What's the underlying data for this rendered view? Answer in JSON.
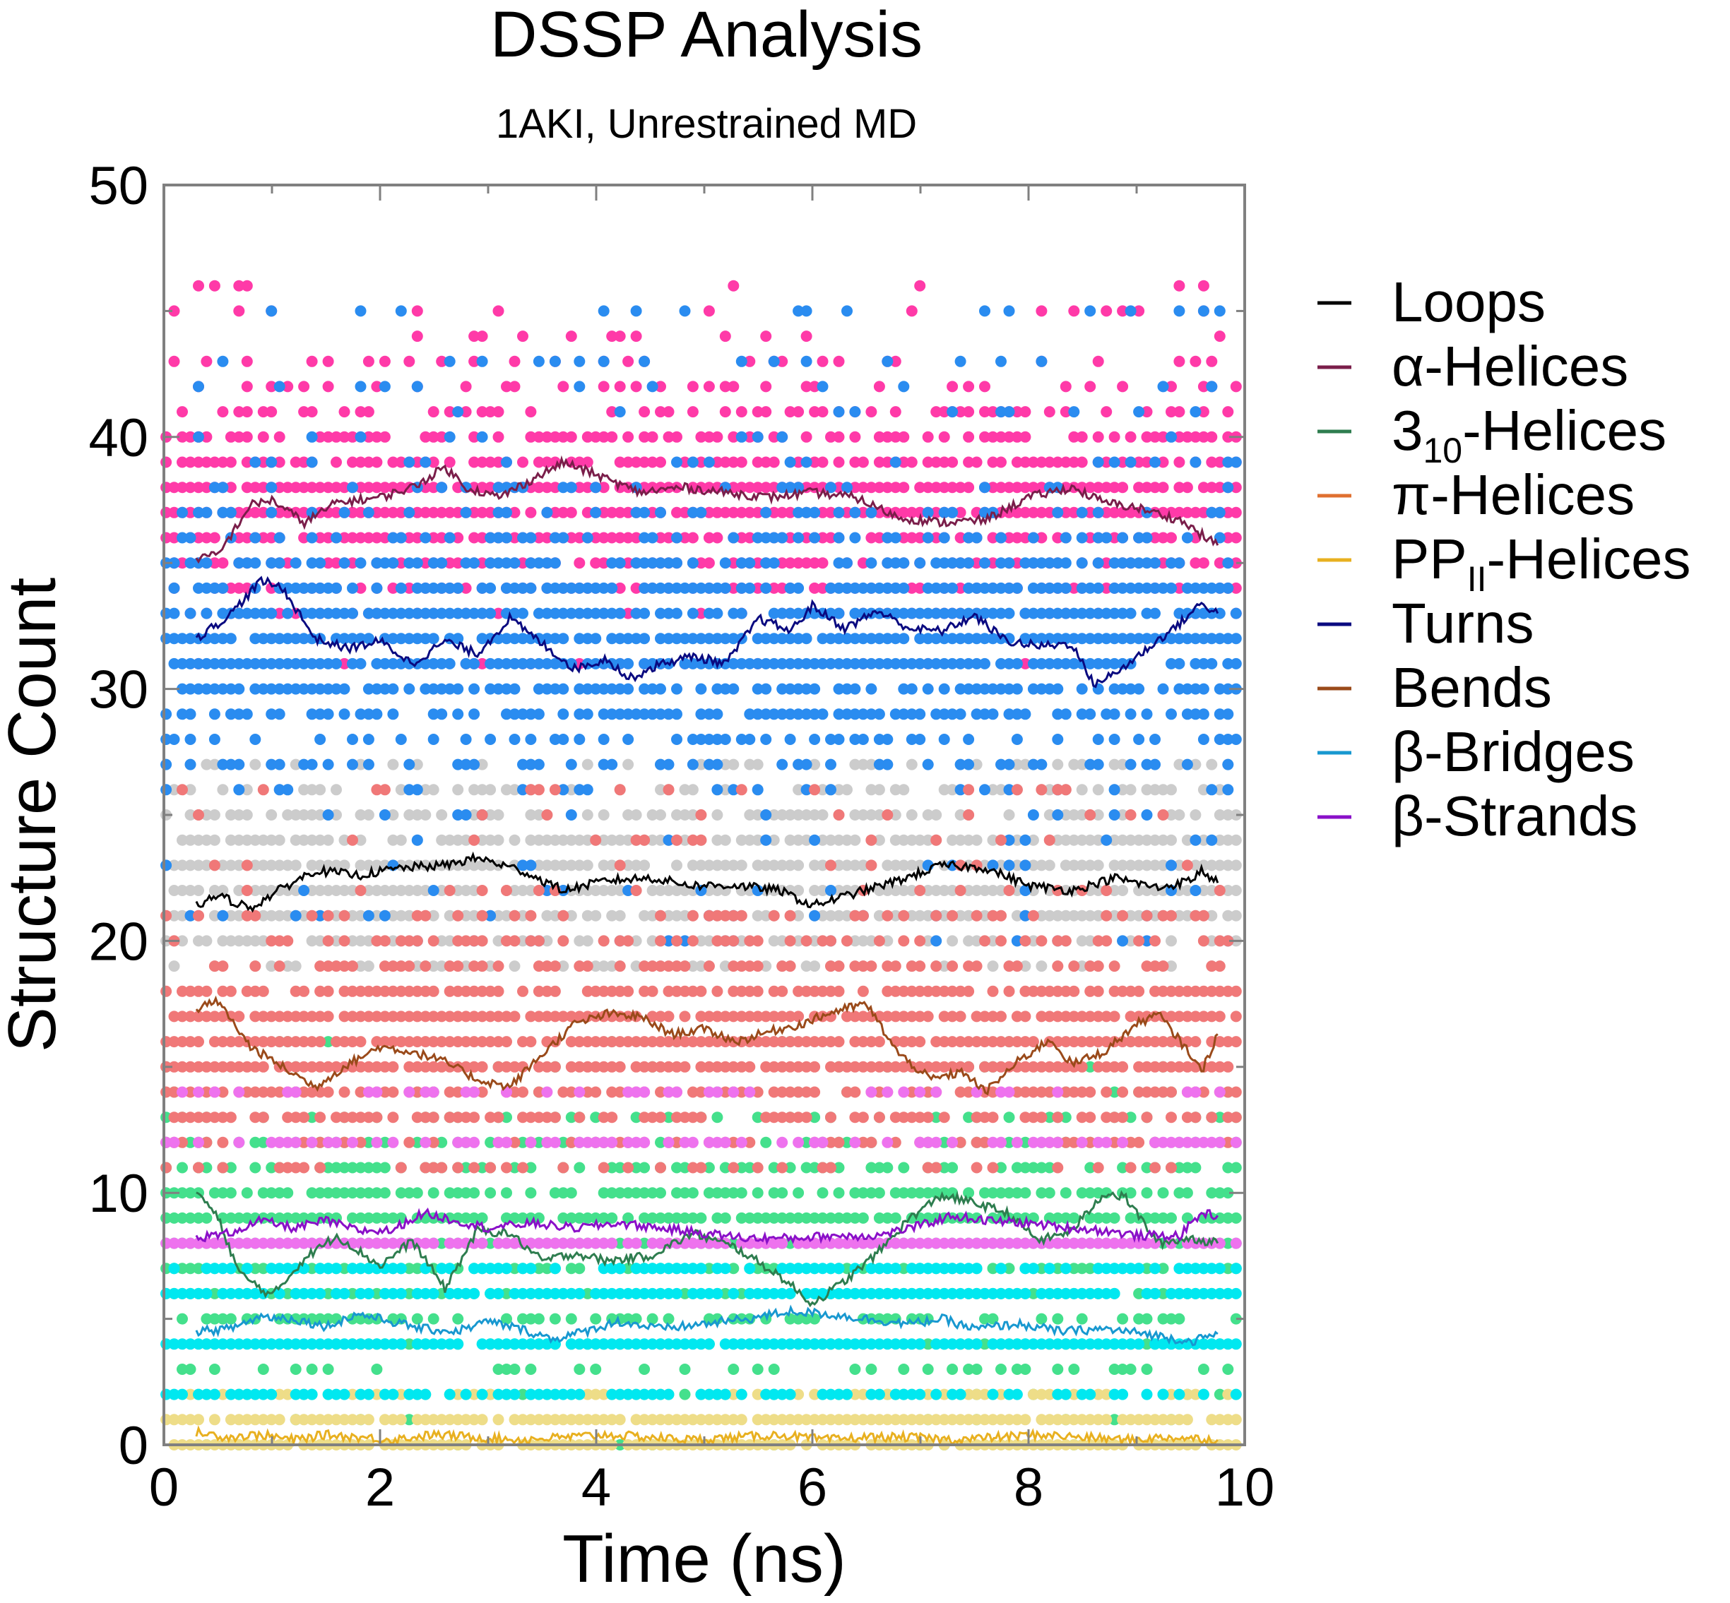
{
  "chart_data": {
    "type": "scatter",
    "title": "DSSP Analysis",
    "subtitle": "1AKI, Unrestrained MD",
    "xlabel": "Time (ns)",
    "ylabel": "Structure Count",
    "xlim": [
      0,
      10
    ],
    "ylim": [
      0,
      50
    ],
    "x_ticks": [
      0,
      2,
      4,
      6,
      8,
      10
    ],
    "y_ticks": [
      0,
      10,
      20,
      30,
      40,
      50
    ],
    "x_tick_labels": [
      "0",
      "2",
      "4",
      "6",
      "8",
      "10"
    ],
    "y_tick_labels": [
      "0",
      "10",
      "20",
      "30",
      "40",
      "50"
    ],
    "grid": false,
    "legend_position": "right",
    "series": [
      {
        "name": "Loops",
        "legend_main": "Loops",
        "legend_sub": "",
        "legend_tail": "",
        "line_color": "#000000",
        "dot_color": "#cccccc",
        "smoothed": [
          [
            0.3,
            21.4
          ],
          [
            0.5,
            21.8
          ],
          [
            0.8,
            21.3
          ],
          [
            1.1,
            22.1
          ],
          [
            1.4,
            22.8
          ],
          [
            1.8,
            22.6
          ],
          [
            2.2,
            22.9
          ],
          [
            2.6,
            23.0
          ],
          [
            2.9,
            23.3
          ],
          [
            3.3,
            22.8
          ],
          [
            3.7,
            22.0
          ],
          [
            4.1,
            22.4
          ],
          [
            4.5,
            22.5
          ],
          [
            4.9,
            22.2
          ],
          [
            5.3,
            22.2
          ],
          [
            5.7,
            22.0
          ],
          [
            6.0,
            21.4
          ],
          [
            6.4,
            21.9
          ],
          [
            6.8,
            22.4
          ],
          [
            7.2,
            23.0
          ],
          [
            7.6,
            22.9
          ],
          [
            8.0,
            22.2
          ],
          [
            8.4,
            22.0
          ],
          [
            8.8,
            22.5
          ],
          [
            9.2,
            22.1
          ],
          [
            9.5,
            22.4
          ],
          [
            9.6,
            22.8
          ],
          [
            9.75,
            22.3
          ]
        ],
        "dot_levels": [
          19,
          20,
          21,
          22,
          23,
          24,
          25,
          26,
          27
        ]
      },
      {
        "name": "α-Helices",
        "legend_main": "α-Helices",
        "legend_sub": "",
        "legend_tail": "",
        "line_color": "#7a1e4a",
        "dot_color": "#ff3aa8",
        "smoothed": [
          [
            0.3,
            35.2
          ],
          [
            0.5,
            35.3
          ],
          [
            0.8,
            37.3
          ],
          [
            1.0,
            37.5
          ],
          [
            1.3,
            36.6
          ],
          [
            1.6,
            37.4
          ],
          [
            2.0,
            37.6
          ],
          [
            2.3,
            38.0
          ],
          [
            2.6,
            38.8
          ],
          [
            2.8,
            38.0
          ],
          [
            3.1,
            37.6
          ],
          [
            3.4,
            38.3
          ],
          [
            3.7,
            39.0
          ],
          [
            4.0,
            38.5
          ],
          [
            4.4,
            37.8
          ],
          [
            4.8,
            38.0
          ],
          [
            5.2,
            37.8
          ],
          [
            5.6,
            37.6
          ],
          [
            6.0,
            37.8
          ],
          [
            6.4,
            37.6
          ],
          [
            6.8,
            36.8
          ],
          [
            7.2,
            36.6
          ],
          [
            7.6,
            36.7
          ],
          [
            8.0,
            37.6
          ],
          [
            8.4,
            38.0
          ],
          [
            8.7,
            37.4
          ],
          [
            9.0,
            37.2
          ],
          [
            9.4,
            36.7
          ],
          [
            9.75,
            35.7
          ]
        ],
        "dot_levels": [
          31,
          33,
          34,
          35,
          36,
          37,
          38,
          39,
          40,
          41,
          42,
          43,
          44,
          45,
          46
        ]
      },
      {
        "name": "3₁₀-Helices",
        "legend_main": "3",
        "legend_sub": "10",
        "legend_tail": "-Helices",
        "line_color": "#2e7d4f",
        "dot_color": "#44e08c",
        "smoothed": [
          [
            0.3,
            10.1
          ],
          [
            0.5,
            9.0
          ],
          [
            0.7,
            6.8
          ],
          [
            1.0,
            5.9
          ],
          [
            1.3,
            7.4
          ],
          [
            1.6,
            8.3
          ],
          [
            2.0,
            7.1
          ],
          [
            2.3,
            8.1
          ],
          [
            2.6,
            6.2
          ],
          [
            2.9,
            8.5
          ],
          [
            3.2,
            8.4
          ],
          [
            3.5,
            7.3
          ],
          [
            3.8,
            7.6
          ],
          [
            4.1,
            7.3
          ],
          [
            4.5,
            7.5
          ],
          [
            4.9,
            8.4
          ],
          [
            5.3,
            7.8
          ],
          [
            5.7,
            6.7
          ],
          [
            6.0,
            5.6
          ],
          [
            6.3,
            6.5
          ],
          [
            6.6,
            7.6
          ],
          [
            6.9,
            9.0
          ],
          [
            7.2,
            9.9
          ],
          [
            7.5,
            9.6
          ],
          [
            7.8,
            9.2
          ],
          [
            8.1,
            8.1
          ],
          [
            8.4,
            8.5
          ],
          [
            8.7,
            10.0
          ],
          [
            8.9,
            9.8
          ],
          [
            9.2,
            8.0
          ],
          [
            9.5,
            8.2
          ],
          [
            9.75,
            8.0
          ]
        ],
        "dot_levels": [
          0,
          1,
          2,
          3,
          4,
          5,
          6,
          7,
          8,
          9,
          10,
          11,
          12,
          13,
          14,
          15,
          16
        ]
      },
      {
        "name": "π-Helices",
        "legend_main": "π-Helices",
        "legend_sub": "",
        "legend_tail": "",
        "line_color": "#e07030",
        "dot_color": "#e07030",
        "smoothed": [
          [
            0.0,
            0.0
          ],
          [
            10.0,
            0.0
          ]
        ],
        "dot_levels": []
      },
      {
        "name": "PPⁱⁱ-Helices",
        "legend_main": "PP",
        "legend_sub": "II",
        "legend_tail": "-Helices",
        "line_color": "#e8b020",
        "dot_color": "#eedd88",
        "smoothed": [
          [
            0.3,
            0.5
          ],
          [
            0.6,
            0.3
          ],
          [
            0.9,
            0.4
          ],
          [
            1.2,
            0.2
          ],
          [
            1.5,
            0.4
          ],
          [
            1.8,
            0.3
          ],
          [
            2.1,
            0.2
          ],
          [
            2.5,
            0.4
          ],
          [
            2.9,
            0.3
          ],
          [
            3.3,
            0.2
          ],
          [
            3.7,
            0.3
          ],
          [
            4.1,
            0.4
          ],
          [
            4.5,
            0.3
          ],
          [
            4.9,
            0.2
          ],
          [
            5.3,
            0.3
          ],
          [
            5.7,
            0.4
          ],
          [
            6.1,
            0.2
          ],
          [
            6.5,
            0.3
          ],
          [
            6.9,
            0.3
          ],
          [
            7.3,
            0.2
          ],
          [
            7.7,
            0.3
          ],
          [
            8.1,
            0.4
          ],
          [
            8.5,
            0.3
          ],
          [
            8.9,
            0.2
          ],
          [
            9.3,
            0.3
          ],
          [
            9.75,
            0.2
          ]
        ],
        "dot_levels": [
          0,
          1,
          2
        ]
      },
      {
        "name": "Turns",
        "legend_main": "Turns",
        "legend_sub": "",
        "legend_tail": "",
        "line_color": "#0a0a80",
        "dot_color": "#2a8cf0",
        "smoothed": [
          [
            0.3,
            32.0
          ],
          [
            0.6,
            32.9
          ],
          [
            0.9,
            34.3
          ],
          [
            1.1,
            34.0
          ],
          [
            1.4,
            32.0
          ],
          [
            1.7,
            31.6
          ],
          [
            2.0,
            31.9
          ],
          [
            2.3,
            31.0
          ],
          [
            2.6,
            31.9
          ],
          [
            2.9,
            31.4
          ],
          [
            3.2,
            32.8
          ],
          [
            3.5,
            31.8
          ],
          [
            3.8,
            30.8
          ],
          [
            4.1,
            31.2
          ],
          [
            4.3,
            30.4
          ],
          [
            4.6,
            31.0
          ],
          [
            4.9,
            31.3
          ],
          [
            5.2,
            31.0
          ],
          [
            5.5,
            32.8
          ],
          [
            5.8,
            32.3
          ],
          [
            6.0,
            33.3
          ],
          [
            6.3,
            32.4
          ],
          [
            6.6,
            33.1
          ],
          [
            6.9,
            32.4
          ],
          [
            7.2,
            32.3
          ],
          [
            7.5,
            32.9
          ],
          [
            7.8,
            31.9
          ],
          [
            8.1,
            31.7
          ],
          [
            8.4,
            31.8
          ],
          [
            8.6,
            30.2
          ],
          [
            8.8,
            30.6
          ],
          [
            9.1,
            31.6
          ],
          [
            9.4,
            32.6
          ],
          [
            9.6,
            33.4
          ],
          [
            9.75,
            33.0
          ]
        ],
        "dot_levels": [
          20,
          21,
          22,
          23,
          24,
          25,
          26,
          27,
          28,
          29,
          30,
          31,
          32,
          33,
          34,
          35,
          36,
          37,
          38,
          39,
          40,
          41,
          42,
          43,
          45
        ]
      },
      {
        "name": "Bends",
        "legend_main": "Bends",
        "legend_sub": "",
        "legend_tail": "",
        "line_color": "#9a4a1a",
        "dot_color": "#f07878",
        "smoothed": [
          [
            0.3,
            17.3
          ],
          [
            0.5,
            17.6
          ],
          [
            0.8,
            15.8
          ],
          [
            1.1,
            15.0
          ],
          [
            1.4,
            14.2
          ],
          [
            1.7,
            15.1
          ],
          [
            2.0,
            15.8
          ],
          [
            2.3,
            15.6
          ],
          [
            2.6,
            15.2
          ],
          [
            2.9,
            14.5
          ],
          [
            3.2,
            14.2
          ],
          [
            3.5,
            15.5
          ],
          [
            3.8,
            16.7
          ],
          [
            4.1,
            17.1
          ],
          [
            4.4,
            17.0
          ],
          [
            4.7,
            16.3
          ],
          [
            5.0,
            16.5
          ],
          [
            5.3,
            16.0
          ],
          [
            5.6,
            16.4
          ],
          [
            5.9,
            16.7
          ],
          [
            6.2,
            17.2
          ],
          [
            6.5,
            17.5
          ],
          [
            6.8,
            15.5
          ],
          [
            7.1,
            14.5
          ],
          [
            7.4,
            14.8
          ],
          [
            7.6,
            14.0
          ],
          [
            7.9,
            15.2
          ],
          [
            8.2,
            16.1
          ],
          [
            8.4,
            15.1
          ],
          [
            8.7,
            15.6
          ],
          [
            9.0,
            16.7
          ],
          [
            9.2,
            17.1
          ],
          [
            9.5,
            15.5
          ],
          [
            9.6,
            14.8
          ],
          [
            9.75,
            16.3
          ]
        ],
        "dot_levels": [
          11,
          12,
          13,
          14,
          15,
          16,
          17,
          18,
          19,
          20,
          21,
          22,
          23,
          24,
          25,
          26
        ]
      },
      {
        "name": "β-Bridges",
        "legend_main": "β-Bridges",
        "legend_sub": "",
        "legend_tail": "",
        "line_color": "#1898d0",
        "dot_color": "#00e8f0",
        "smoothed": [
          [
            0.3,
            4.5
          ],
          [
            0.6,
            4.6
          ],
          [
            0.9,
            5.1
          ],
          [
            1.2,
            5.0
          ],
          [
            1.5,
            4.7
          ],
          [
            1.8,
            5.2
          ],
          [
            2.1,
            4.9
          ],
          [
            2.4,
            4.6
          ],
          [
            2.7,
            4.5
          ],
          [
            3.0,
            4.9
          ],
          [
            3.3,
            4.6
          ],
          [
            3.6,
            4.2
          ],
          [
            3.9,
            4.5
          ],
          [
            4.2,
            4.9
          ],
          [
            4.6,
            4.6
          ],
          [
            5.0,
            4.8
          ],
          [
            5.4,
            5.0
          ],
          [
            5.8,
            5.3
          ],
          [
            6.1,
            5.2
          ],
          [
            6.5,
            5.0
          ],
          [
            6.9,
            4.8
          ],
          [
            7.2,
            5.0
          ],
          [
            7.5,
            4.6
          ],
          [
            7.9,
            4.8
          ],
          [
            8.3,
            4.5
          ],
          [
            8.7,
            4.6
          ],
          [
            9.1,
            4.4
          ],
          [
            9.5,
            4.1
          ],
          [
            9.75,
            4.4
          ]
        ],
        "dot_levels": [
          2,
          4,
          6,
          7
        ]
      },
      {
        "name": "β-Strands",
        "legend_main": "β-Strands",
        "legend_sub": "",
        "legend_tail": "",
        "line_color": "#8a10c8",
        "dot_color": "#ee72ee",
        "smoothed": [
          [
            0.3,
            8.2
          ],
          [
            0.6,
            8.4
          ],
          [
            0.9,
            8.9
          ],
          [
            1.2,
            8.6
          ],
          [
            1.5,
            8.9
          ],
          [
            1.8,
            8.5
          ],
          [
            2.1,
            8.5
          ],
          [
            2.4,
            9.2
          ],
          [
            2.7,
            8.9
          ],
          [
            3.0,
            8.6
          ],
          [
            3.4,
            8.8
          ],
          [
            3.8,
            8.6
          ],
          [
            4.2,
            8.8
          ],
          [
            4.6,
            8.6
          ],
          [
            5.0,
            8.4
          ],
          [
            5.4,
            8.2
          ],
          [
            5.8,
            8.2
          ],
          [
            6.2,
            8.3
          ],
          [
            6.6,
            8.3
          ],
          [
            7.0,
            8.7
          ],
          [
            7.3,
            9.1
          ],
          [
            7.6,
            8.9
          ],
          [
            8.0,
            8.8
          ],
          [
            8.4,
            8.6
          ],
          [
            8.7,
            8.5
          ],
          [
            9.0,
            8.3
          ],
          [
            9.4,
            8.3
          ],
          [
            9.6,
            9.2
          ],
          [
            9.75,
            9.1
          ]
        ],
        "dot_levels": [
          8,
          12,
          14
        ]
      }
    ]
  }
}
